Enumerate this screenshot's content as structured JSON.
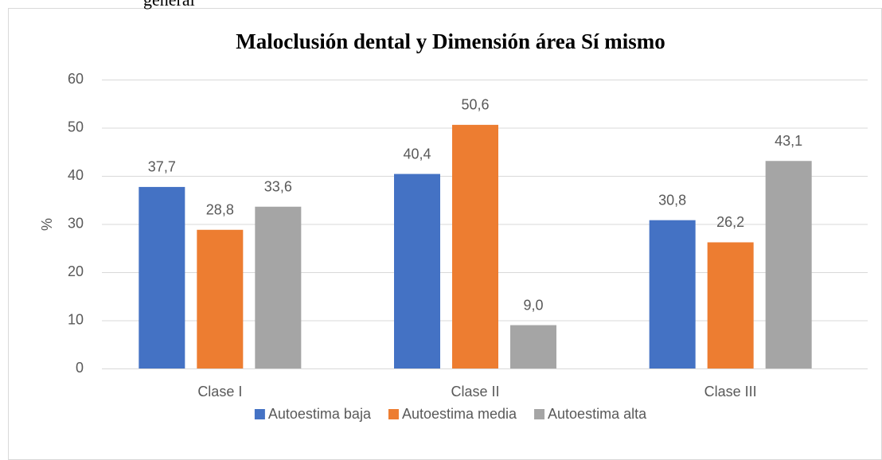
{
  "header_text": "general",
  "chart_data": {
    "type": "bar",
    "title": "Maloclusión dental  y Dimensión área Sí mismo",
    "y_label": "%",
    "categories": [
      "Clase I",
      "Clase II",
      "Clase III"
    ],
    "series": [
      {
        "name": "Autoestima baja",
        "color": "#4472c4",
        "values": [
          37.7,
          40.4,
          30.8
        ],
        "value_labels": [
          "37,7",
          "40,4",
          "30,8"
        ]
      },
      {
        "name": "Autoestima media",
        "color": "#ed7d31",
        "values": [
          28.8,
          50.6,
          26.2
        ],
        "value_labels": [
          "28,8",
          "50,6",
          "26,2"
        ]
      },
      {
        "name": "Autoestima alta",
        "color": "#a5a5a5",
        "values": [
          33.6,
          9.0,
          43.1
        ],
        "value_labels": [
          "33,6",
          "9,0",
          "43,1"
        ]
      }
    ],
    "ylim": [
      0,
      60
    ],
    "yticks": [
      0,
      10,
      20,
      30,
      40,
      50,
      60
    ],
    "grid": true,
    "legend": "bottom"
  }
}
